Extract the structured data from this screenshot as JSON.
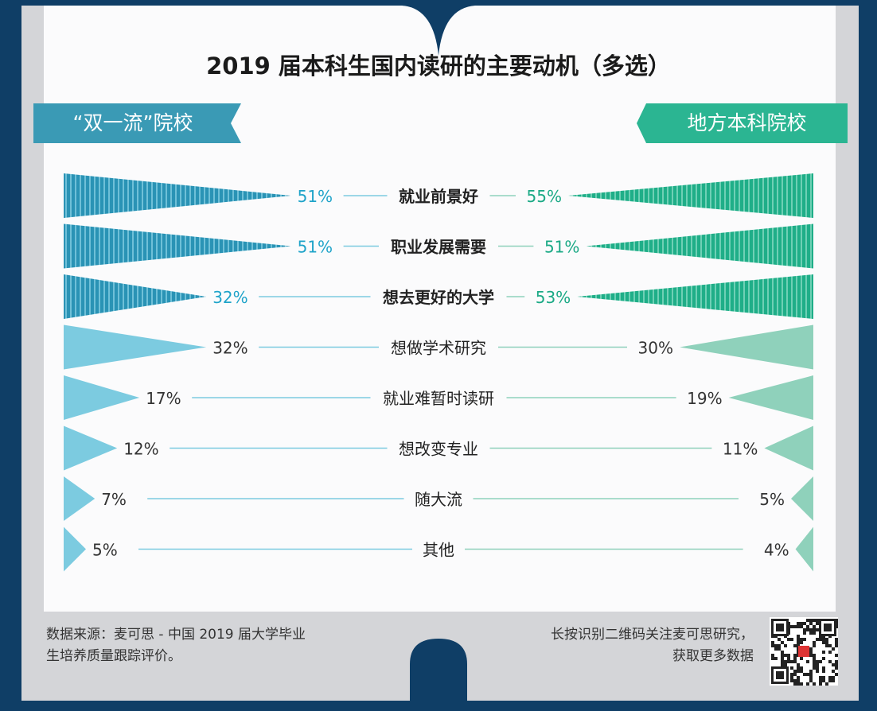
{
  "title": "2019 届本科生国内读研的主要动机（多选）",
  "colors": {
    "background": "#0f3e66",
    "left_dark": "#2a93b5",
    "left_light": "#7ccbe0",
    "right_dark": "#1fae88",
    "right_light": "#8fd1bb",
    "left_text": "#1ea3c9",
    "right_text": "#1aa985"
  },
  "chart_data": {
    "type": "bar",
    "title": "2019 届本科生国内读研的主要动机（多选）",
    "categories": [
      "就业前景好",
      "职业发展需要",
      "想去更好的大学",
      "想做学术研究",
      "就业难暂时读研",
      "想改变专业",
      "随大流",
      "其他"
    ],
    "series": [
      {
        "name": "“双一流”院校",
        "values": [
          51,
          51,
          32,
          32,
          17,
          12,
          7,
          5
        ],
        "labels": [
          "51%",
          "51%",
          "32%",
          "32%",
          "17%",
          "12%",
          "7%",
          "5%"
        ]
      },
      {
        "name": "地方本科院校",
        "values": [
          55,
          51,
          53,
          30,
          19,
          11,
          5,
          4
        ],
        "labels": [
          "55%",
          "51%",
          "53%",
          "30%",
          "19%",
          "11%",
          "5%",
          "4%"
        ]
      }
    ],
    "highlighted_top": 3
  },
  "footer": {
    "source_line1": "数据来源：麦可思 - 中国 2019 届大学毕业",
    "source_line2": "生培养质量跟踪评价。",
    "qr_line1": "长按识别二维码关注麦可思研究，",
    "qr_line2": "获取更多数据"
  }
}
